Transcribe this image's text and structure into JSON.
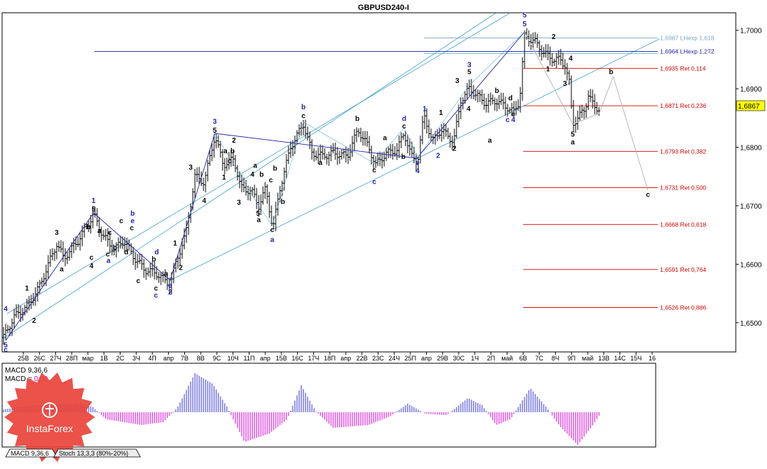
{
  "title": "GBPUSD240-I",
  "current_price": "1,6867",
  "colors": {
    "fib": "#d40000",
    "wave_blue": "#1f1fa8",
    "channel": "#3fa0d0",
    "hist_blue": "#3333cc",
    "hist_magenta": "#cc00cc",
    "price_box": "#ffff00",
    "logo": "#e8453c"
  },
  "price_axis": {
    "min": 1.645,
    "max": 1.703,
    "ticks": [
      "1,7000",
      "1,6900",
      "1,6800",
      "1,6700",
      "1,6600",
      "1,6500"
    ],
    "tick_values": [
      1.7,
      1.69,
      1.68,
      1.67,
      1.66,
      1.65
    ]
  },
  "time_axis": {
    "labels": [
      "25В",
      "26С",
      "27Ч",
      "28П",
      "мар",
      "1В",
      "2С",
      "3Ч",
      "4П",
      "апр",
      "7В",
      "8В",
      "9С",
      "10Ч",
      "11П",
      "апр",
      "15В",
      "16С",
      "17Ч",
      "18П",
      "апр",
      "22В",
      "23С",
      "24Ч",
      "25П",
      "апр",
      "29В",
      "30С",
      "1Ч",
      "2П",
      "май",
      "6В",
      "7С",
      "8Ч",
      "9П",
      "май",
      "13В",
      "14С",
      "15Ч",
      "16"
    ]
  },
  "fib_levels": [
    {
      "price": 1.6987,
      "label": "1,6987 LHexp 1,618",
      "style": "lhexp1"
    },
    {
      "price": 1.6964,
      "label": "1,6964 LHexp 1,272",
      "style": "lhexp2"
    },
    {
      "price": 1.6935,
      "label": "1,6935 Ret 0,114",
      "style": "ret"
    },
    {
      "price": 1.6871,
      "label": "1,6871 Ret 0,236",
      "style": "ret"
    },
    {
      "price": 1.6793,
      "label": "1,6793 Ret 0,382",
      "style": "ret"
    },
    {
      "price": 1.6731,
      "label": "1,6731 Ret 0,500",
      "style": "ret"
    },
    {
      "price": 1.6668,
      "label": "1,6668 Ret 0,618",
      "style": "ret"
    },
    {
      "price": 1.6591,
      "label": "1,6591 Ret 0,764",
      "style": "ret"
    },
    {
      "price": 1.6526,
      "label": "1,6526 Ret 0,886",
      "style": "ret"
    }
  ],
  "wave_labels": [
    {
      "t": "4",
      "x": 8,
      "p": 1.652,
      "c": "blue"
    },
    {
      "t": "5",
      "x": 8,
      "p": 1.6458,
      "c": "blue"
    },
    {
      "t": "c",
      "x": 8,
      "p": 1.645,
      "c": "blue"
    },
    {
      "t": "1",
      "x": 38,
      "p": 1.6555,
      "c": "black"
    },
    {
      "t": "2",
      "x": 48,
      "p": 1.65,
      "c": "black"
    },
    {
      "t": "3",
      "x": 80,
      "p": 1.665,
      "c": "black"
    },
    {
      "t": "a",
      "x": 87,
      "p": 1.6588,
      "c": "black"
    },
    {
      "t": "1",
      "x": 132,
      "p": 1.6705,
      "c": "blue"
    },
    {
      "t": "5",
      "x": 132,
      "p": 1.669,
      "c": "black"
    },
    {
      "t": "b",
      "x": 125,
      "p": 1.666,
      "c": "black"
    },
    {
      "t": "a",
      "x": 140,
      "p": 1.6653,
      "c": "black"
    },
    {
      "t": "c",
      "x": 129,
      "p": 1.6608,
      "c": "black"
    },
    {
      "t": "4",
      "x": 129,
      "p": 1.6593,
      "c": "black"
    },
    {
      "t": "c",
      "x": 155,
      "p": 1.665,
      "c": "black"
    },
    {
      "t": "b",
      "x": 162,
      "p": 1.6625,
      "c": "black"
    },
    {
      "t": "c",
      "x": 152,
      "p": 1.6613,
      "c": "black"
    },
    {
      "t": "a",
      "x": 153,
      "p": 1.6602,
      "c": "blue"
    },
    {
      "t": "c",
      "x": 171,
      "p": 1.667,
      "c": "black"
    },
    {
      "t": "b",
      "x": 187,
      "p": 1.6683,
      "c": "blue"
    },
    {
      "t": "e",
      "x": 187,
      "p": 1.667,
      "c": "blue"
    },
    {
      "t": "c",
      "x": 186,
      "p": 1.6658,
      "c": "black"
    },
    {
      "t": "d",
      "x": 178,
      "p": 1.6617,
      "c": "black"
    },
    {
      "t": "d",
      "x": 221,
      "p": 1.6617,
      "c": "blue"
    },
    {
      "t": "b",
      "x": 217,
      "p": 1.6605,
      "c": "black"
    },
    {
      "t": "c",
      "x": 195,
      "p": 1.6568,
      "c": "black"
    },
    {
      "t": "c",
      "x": 220,
      "p": 1.6555,
      "c": "black"
    },
    {
      "t": "c",
      "x": 220,
      "p": 1.6543,
      "c": "blue"
    },
    {
      "t": "e",
      "x": 240,
      "p": 1.656,
      "c": "blue"
    },
    {
      "t": "2",
      "x": 240,
      "p": 1.6548,
      "c": "blue"
    },
    {
      "t": "a",
      "x": 234,
      "p": 1.658,
      "c": "black"
    },
    {
      "t": "1",
      "x": 247,
      "p": 1.6632,
      "c": "black"
    },
    {
      "t": "2",
      "x": 255,
      "p": 1.659,
      "c": "black"
    },
    {
      "t": "3",
      "x": 269,
      "p": 1.6762,
      "c": "black"
    },
    {
      "t": "4",
      "x": 288,
      "p": 1.6705,
      "c": "black"
    },
    {
      "t": "3",
      "x": 303,
      "p": 1.684,
      "c": "blue"
    },
    {
      "t": "5",
      "x": 303,
      "p": 1.6825,
      "c": "black"
    },
    {
      "t": "2",
      "x": 330,
      "p": 1.6808,
      "c": "black"
    },
    {
      "t": "1",
      "x": 316,
      "p": 1.6745,
      "c": "black"
    },
    {
      "t": "a",
      "x": 318,
      "p": 1.679,
      "c": "black"
    },
    {
      "t": "b",
      "x": 328,
      "p": 1.679,
      "c": "black"
    },
    {
      "t": "c",
      "x": 324,
      "p": 1.6773,
      "c": "black"
    },
    {
      "t": "3",
      "x": 337,
      "p": 1.6702,
      "c": "black"
    },
    {
      "t": "a",
      "x": 360,
      "p": 1.6765,
      "c": "black"
    },
    {
      "t": "4",
      "x": 356,
      "p": 1.675,
      "c": "black"
    },
    {
      "t": "b",
      "x": 369,
      "p": 1.675,
      "c": "black"
    },
    {
      "t": "5",
      "x": 364,
      "p": 1.6683,
      "c": "black"
    },
    {
      "t": "a",
      "x": 365,
      "p": 1.6672,
      "c": "black"
    },
    {
      "t": "c",
      "x": 382,
      "p": 1.674,
      "c": "black"
    },
    {
      "t": "b",
      "x": 388,
      "p": 1.676,
      "c": "black"
    },
    {
      "t": "b",
      "x": 399,
      "p": 1.6703,
      "c": "black"
    },
    {
      "t": "c",
      "x": 384,
      "p": 1.6655,
      "c": "black"
    },
    {
      "t": "a",
      "x": 384,
      "p": 1.6638,
      "c": "blue"
    },
    {
      "t": "b",
      "x": 428,
      "p": 1.6865,
      "c": "blue"
    },
    {
      "t": "c",
      "x": 428,
      "p": 1.685,
      "c": "black"
    },
    {
      "t": "a",
      "x": 452,
      "p": 1.677,
      "c": "black"
    },
    {
      "t": "b",
      "x": 504,
      "p": 1.6845,
      "c": "black"
    },
    {
      "t": "a",
      "x": 543,
      "p": 1.6812,
      "c": "black"
    },
    {
      "t": "d",
      "x": 570,
      "p": 1.6845,
      "c": "blue"
    },
    {
      "t": "c",
      "x": 570,
      "p": 1.6832,
      "c": "black"
    },
    {
      "t": "b",
      "x": 569,
      "p": 1.678,
      "c": "black"
    },
    {
      "t": "c",
      "x": 528,
      "p": 1.6757,
      "c": "black"
    },
    {
      "t": "c",
      "x": 528,
      "p": 1.6737,
      "c": "blue"
    },
    {
      "t": "e",
      "x": 589,
      "p": 1.677,
      "c": "blue"
    },
    {
      "t": "4",
      "x": 589,
      "p": 1.6756,
      "c": "blue"
    },
    {
      "t": "1",
      "x": 599,
      "p": 1.6862,
      "c": "blue"
    },
    {
      "t": "1",
      "x": 622,
      "p": 1.6855,
      "c": "black"
    },
    {
      "t": "2",
      "x": 618,
      "p": 1.6782,
      "c": "blue"
    },
    {
      "t": "2",
      "x": 641,
      "p": 1.6794,
      "c": "black"
    },
    {
      "t": "3",
      "x": 662,
      "p": 1.6937,
      "c": "blue"
    },
    {
      "t": "5",
      "x": 662,
      "p": 1.6925,
      "c": "black"
    },
    {
      "t": "3",
      "x": 645,
      "p": 1.691,
      "c": "black"
    },
    {
      "t": "4",
      "x": 661,
      "p": 1.6862,
      "c": "black"
    },
    {
      "t": "b",
      "x": 701,
      "p": 1.6893,
      "c": "black"
    },
    {
      "t": "a",
      "x": 691,
      "p": 1.6808,
      "c": "black"
    },
    {
      "t": "d",
      "x": 720,
      "p": 1.688,
      "c": "black"
    },
    {
      "t": "e",
      "x": 724,
      "p": 1.6853,
      "c": "black"
    },
    {
      "t": "c",
      "x": 716,
      "p": 1.6843,
      "c": "blue"
    },
    {
      "t": "4",
      "x": 724,
      "p": 1.6843,
      "c": "blue"
    },
    {
      "t": "5",
      "x": 740,
      "p": 1.7022,
      "c": "blue"
    },
    {
      "t": "5",
      "x": 740,
      "p": 1.7007,
      "c": "blue"
    },
    {
      "t": "2",
      "x": 781,
      "p": 1.6985,
      "c": "black"
    },
    {
      "t": "1",
      "x": 773,
      "p": 1.693,
      "c": "black"
    },
    {
      "t": "4",
      "x": 805,
      "p": 1.6948,
      "c": "black"
    },
    {
      "t": "3",
      "x": 797,
      "p": 1.6905,
      "c": "black"
    },
    {
      "t": "5",
      "x": 808,
      "p": 1.6818,
      "c": "black"
    },
    {
      "t": "a",
      "x": 808,
      "p": 1.6805,
      "c": "black"
    },
    {
      "t": "b",
      "x": 862,
      "p": 1.6925,
      "c": "black"
    },
    {
      "t": "c",
      "x": 914,
      "p": 1.6715,
      "c": "black"
    }
  ],
  "macd": {
    "label": "MACD 9,36,6",
    "value_label": "MACD = ",
    "value": "0.00"
  },
  "bottom_tabs": [
    {
      "label": "MACD 9,36,6"
    },
    {
      "label": "Stoch 13,3,3 (80%-20%)"
    }
  ],
  "logo": {
    "text": "InstaForex"
  }
}
